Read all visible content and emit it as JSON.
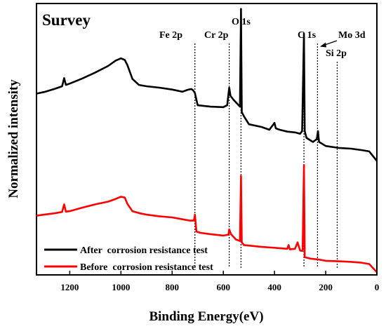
{
  "chart_data": {
    "type": "line",
    "title": "Survey",
    "xlabel": "Binding Energy(eV)",
    "ylabel": "Normalized intensity",
    "xlim": [
      1330,
      0
    ],
    "x_reversed": true,
    "x_ticks": [
      1200,
      1000,
      800,
      600,
      400,
      200,
      0
    ],
    "y_tick_labels": false,
    "grid": false,
    "legend_position": "bottom-left",
    "peak_markers": [
      {
        "label": "Fe 2p",
        "energy": 711
      },
      {
        "label": "Cr 2p",
        "energy": 577
      },
      {
        "label": "O 1s",
        "energy": 531
      },
      {
        "label": "C 1s",
        "energy": 285
      },
      {
        "label": "Mo 3d",
        "energy": 232
      },
      {
        "label": "Si 2p",
        "energy": 155
      }
    ],
    "series": [
      {
        "name": "After  corrosion resistance test",
        "color": "#000000",
        "points": [
          [
            1330,
            0.668
          ],
          [
            1300,
            0.674
          ],
          [
            1260,
            0.685
          ],
          [
            1230,
            0.695
          ],
          [
            1222,
            0.725
          ],
          [
            1215,
            0.7
          ],
          [
            1200,
            0.705
          ],
          [
            1150,
            0.724
          ],
          [
            1100,
            0.746
          ],
          [
            1050,
            0.77
          ],
          [
            1020,
            0.79
          ],
          [
            1000,
            0.798
          ],
          [
            985,
            0.792
          ],
          [
            975,
            0.773
          ],
          [
            955,
            0.722
          ],
          [
            930,
            0.7
          ],
          [
            900,
            0.695
          ],
          [
            850,
            0.69
          ],
          [
            800,
            0.683
          ],
          [
            760,
            0.675
          ],
          [
            740,
            0.682
          ],
          [
            725,
            0.685
          ],
          [
            718,
            0.68
          ],
          [
            711,
            0.67
          ],
          [
            705,
            0.645
          ],
          [
            700,
            0.625
          ],
          [
            650,
            0.62
          ],
          [
            600,
            0.618
          ],
          [
            585,
            0.625
          ],
          [
            577,
            0.69
          ],
          [
            572,
            0.66
          ],
          [
            560,
            0.645
          ],
          [
            545,
            0.63
          ],
          [
            535,
            0.62
          ],
          [
            531,
            0.98
          ],
          [
            528,
            0.6
          ],
          [
            520,
            0.585
          ],
          [
            500,
            0.555
          ],
          [
            450,
            0.545
          ],
          [
            420,
            0.535
          ],
          [
            400,
            0.56
          ],
          [
            395,
            0.54
          ],
          [
            380,
            0.535
          ],
          [
            350,
            0.528
          ],
          [
            320,
            0.525
          ],
          [
            300,
            0.52
          ],
          [
            292,
            0.53
          ],
          [
            285,
            0.89
          ],
          [
            282,
            0.53
          ],
          [
            275,
            0.505
          ],
          [
            250,
            0.49
          ],
          [
            235,
            0.5
          ],
          [
            230,
            0.53
          ],
          [
            226,
            0.49
          ],
          [
            200,
            0.475
          ],
          [
            150,
            0.468
          ],
          [
            100,
            0.465
          ],
          [
            60,
            0.46
          ],
          [
            30,
            0.455
          ],
          [
            0,
            0.42
          ]
        ]
      },
      {
        "name": "Before  corrosion resistance test",
        "color": "#ff0000",
        "points": [
          [
            1330,
            0.218
          ],
          [
            1300,
            0.222
          ],
          [
            1260,
            0.227
          ],
          [
            1230,
            0.232
          ],
          [
            1222,
            0.26
          ],
          [
            1215,
            0.233
          ],
          [
            1200,
            0.235
          ],
          [
            1150,
            0.248
          ],
          [
            1100,
            0.26
          ],
          [
            1050,
            0.27
          ],
          [
            1020,
            0.28
          ],
          [
            1000,
            0.288
          ],
          [
            985,
            0.285
          ],
          [
            975,
            0.262
          ],
          [
            955,
            0.235
          ],
          [
            930,
            0.228
          ],
          [
            900,
            0.222
          ],
          [
            850,
            0.216
          ],
          [
            800,
            0.212
          ],
          [
            760,
            0.205
          ],
          [
            730,
            0.2
          ],
          [
            715,
            0.2
          ],
          [
            711,
            0.222
          ],
          [
            705,
            0.16
          ],
          [
            690,
            0.155
          ],
          [
            650,
            0.15
          ],
          [
            600,
            0.145
          ],
          [
            580,
            0.148
          ],
          [
            577,
            0.168
          ],
          [
            570,
            0.15
          ],
          [
            550,
            0.13
          ],
          [
            535,
            0.125
          ],
          [
            531,
            0.365
          ],
          [
            528,
            0.12
          ],
          [
            520,
            0.11
          ],
          [
            500,
            0.108
          ],
          [
            450,
            0.103
          ],
          [
            400,
            0.1
          ],
          [
            350,
            0.096
          ],
          [
            345,
            0.11
          ],
          [
            340,
            0.094
          ],
          [
            320,
            0.096
          ],
          [
            310,
            0.12
          ],
          [
            300,
            0.09
          ],
          [
            290,
            0.088
          ],
          [
            285,
            0.405
          ],
          [
            282,
            0.065
          ],
          [
            260,
            0.06
          ],
          [
            230,
            0.057
          ],
          [
            200,
            0.052
          ],
          [
            150,
            0.05
          ],
          [
            100,
            0.048
          ],
          [
            60,
            0.045
          ],
          [
            30,
            0.04
          ],
          [
            0,
            0.01
          ]
        ]
      }
    ]
  }
}
